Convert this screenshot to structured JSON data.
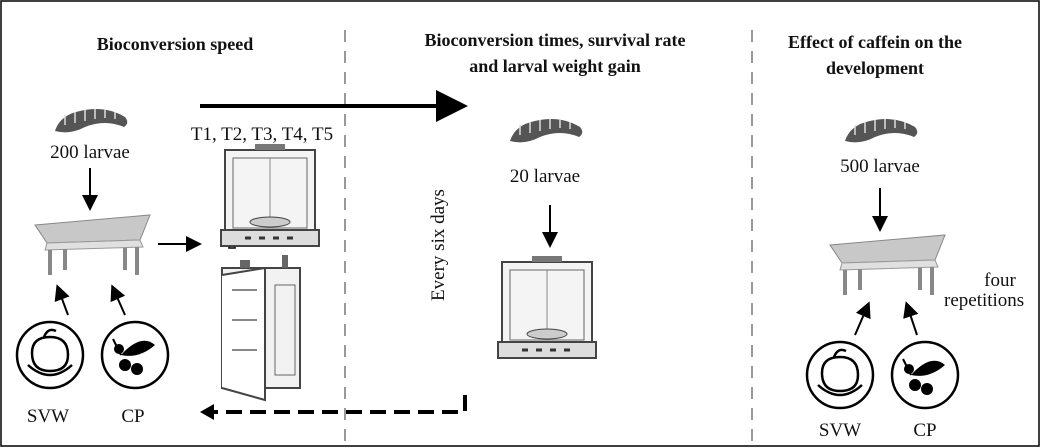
{
  "panels": [
    {
      "title_lines": [
        "Bioconversion speed"
      ],
      "larvae": "200 larvae",
      "treatments": "T1, T2, T3, T4, T5",
      "substrates": [
        "SVW",
        "CP"
      ]
    },
    {
      "title_lines": [
        "Bioconversion times, survival rate",
        "and larval weight gain"
      ],
      "larvae": "20 larvae",
      "interval": "Every six days"
    },
    {
      "title_lines": [
        "Effect of caffein on the",
        "development"
      ],
      "larvae": "500 larvae",
      "repetitions": [
        "four",
        "repetitions"
      ],
      "substrates": [
        "SVW",
        "CP"
      ]
    }
  ]
}
